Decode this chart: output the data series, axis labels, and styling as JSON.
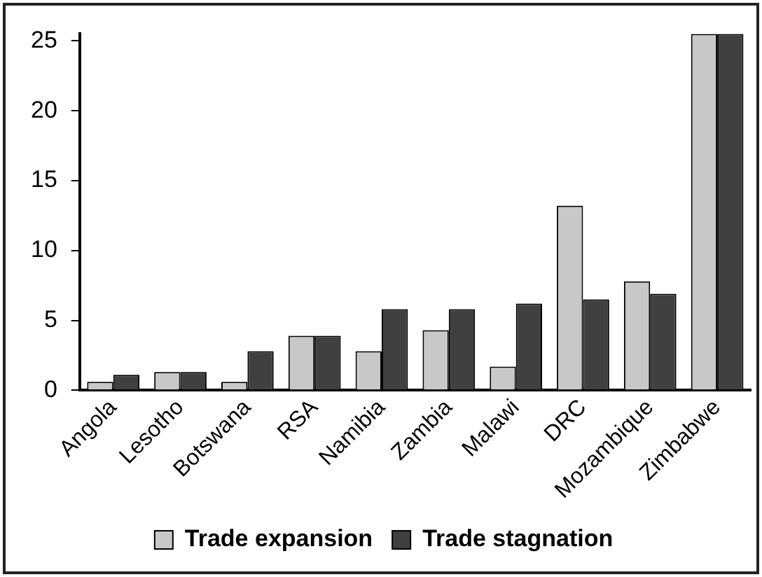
{
  "chart_data": {
    "type": "bar",
    "categories": [
      "Angola",
      "Lesotho",
      "Botswana",
      "RSA",
      "Namibia",
      "Zambia",
      "Malawi",
      "DRC",
      "Mozambique",
      "Zimbabwe"
    ],
    "series": [
      {
        "name": "Trade expansion",
        "color": "#c8c8c8",
        "values": [
          0.6,
          1.3,
          0.6,
          3.9,
          2.8,
          4.3,
          1.7,
          13.2,
          7.8,
          25.5
        ]
      },
      {
        "name": "Trade stagnation",
        "color": "#404040",
        "values": [
          1.1,
          1.3,
          2.8,
          3.9,
          5.8,
          5.8,
          6.2,
          6.5,
          6.9,
          25.5
        ]
      }
    ],
    "ylim": [
      0,
      25.5
    ],
    "yticks": [
      0,
      5,
      10,
      15,
      20,
      25
    ],
    "grid": false,
    "legend": "bottom"
  }
}
